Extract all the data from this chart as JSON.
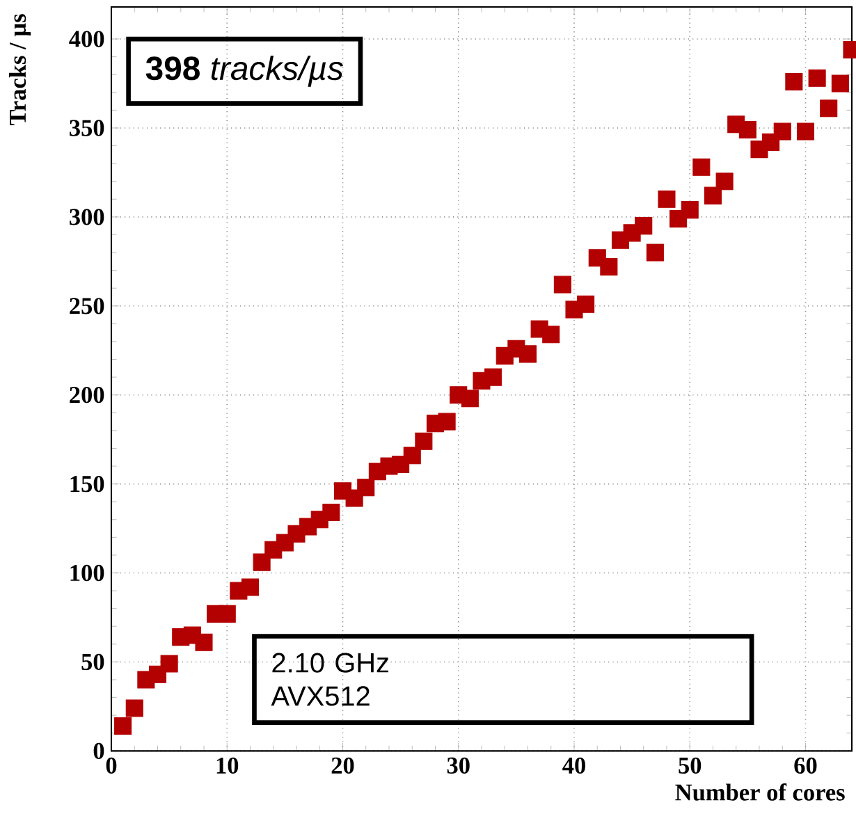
{
  "chart_data": {
    "type": "scatter",
    "xlabel": "Number of cores",
    "ylabel": "Tracks / µs",
    "annotations": [
      "**398** *tracks/µs*",
      "2.10 GHz",
      "AVX512"
    ],
    "x": [
      1,
      2,
      3,
      4,
      5,
      6,
      7,
      8,
      9,
      10,
      11,
      12,
      13,
      14,
      15,
      16,
      17,
      18,
      19,
      20,
      21,
      22,
      23,
      24,
      25,
      26,
      27,
      28,
      29,
      30,
      31,
      32,
      33,
      34,
      35,
      36,
      37,
      38,
      39,
      40,
      41,
      42,
      43,
      44,
      45,
      46,
      47,
      48,
      49,
      50,
      51,
      52,
      53,
      54,
      55,
      56,
      57,
      58,
      59,
      60,
      61,
      62,
      63,
      64
    ],
    "series": [
      {
        "color": "#b30000",
        "values": [
          14,
          24,
          40,
          43,
          49,
          64,
          65,
          61,
          77,
          77,
          90,
          92,
          106,
          113,
          117,
          122,
          126,
          130,
          134,
          146,
          142,
          148,
          157,
          160,
          161,
          166,
          174,
          184,
          185,
          200,
          198,
          208,
          210,
          222,
          226,
          223,
          237,
          234,
          262,
          248,
          251,
          277,
          272,
          287,
          291,
          295,
          280,
          310,
          299,
          304,
          328,
          312,
          320,
          352,
          349,
          338,
          342,
          348,
          376,
          348,
          378,
          361,
          375,
          394
        ]
      }
    ],
    "xlim": [
      0,
      64
    ],
    "ylim": [
      0,
      418
    ],
    "xticks": [
      0,
      10,
      20,
      30,
      40,
      50,
      60
    ],
    "yticks": [
      0,
      50,
      100,
      150,
      200,
      250,
      300,
      350,
      400
    ],
    "grid": true,
    "marker": "square"
  }
}
